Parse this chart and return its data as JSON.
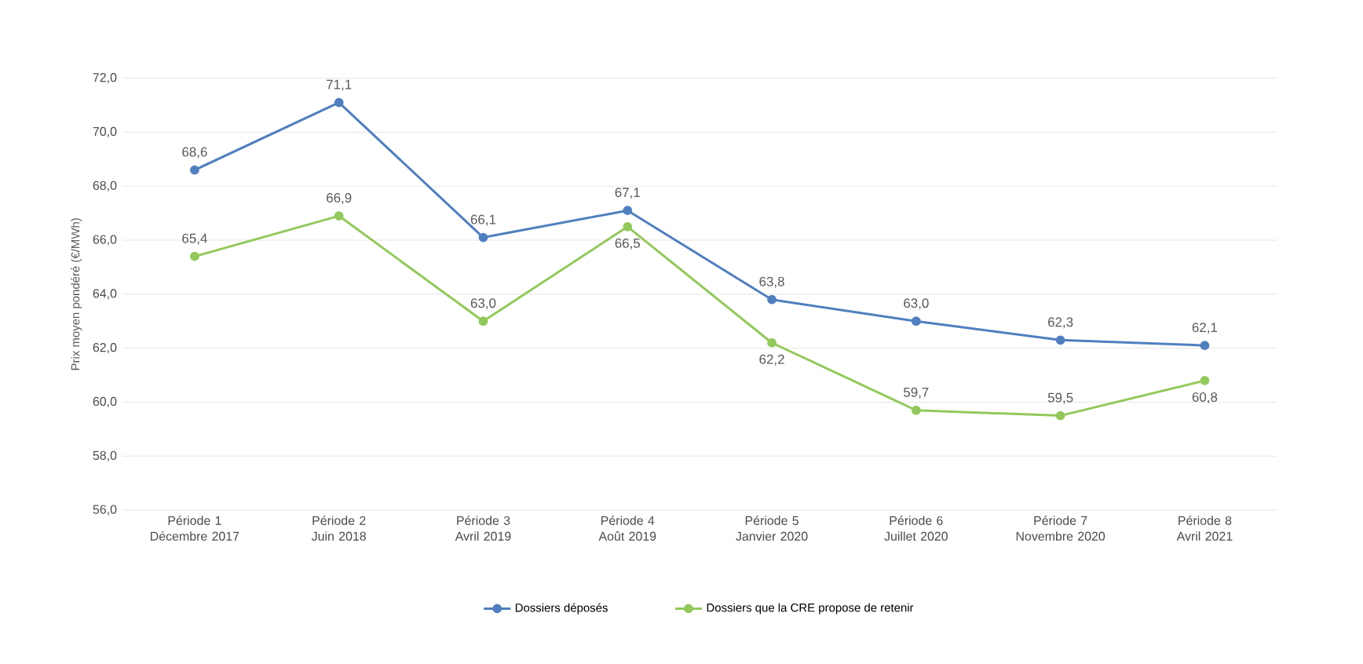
{
  "chart_data": {
    "type": "line",
    "ylabel": "Prix moyen pondéré (€/MWh)",
    "categories": [
      "Période 1 Décembre 2017",
      "Période 2 Juin 2018",
      "Période 3 Avril 2019",
      "Période 4 Août 2019",
      "Période 5 Janvier 2020",
      "Période 6 Juillet 2020",
      "Période 7 Novembre 2020",
      "Période 8 Avril 2021"
    ],
    "series": [
      {
        "name": "Dossiers déposés",
        "color": "#4f7fbf",
        "values": [
          68.6,
          71.1,
          66.1,
          67.1,
          63.8,
          63.0,
          62.3,
          62.1
        ],
        "value_labels": [
          "68,6",
          "71,1",
          "66,1",
          "67,1",
          "63,8",
          "63,0",
          "62,3",
          "62,1"
        ]
      },
      {
        "name": "Dossiers que la CRE propose de retenir",
        "color": "#92c95a",
        "values": [
          65.4,
          66.9,
          63.0,
          66.5,
          62.2,
          59.7,
          59.5,
          60.8
        ],
        "value_labels": [
          "65,4",
          "66,9",
          "63,0",
          "66,5",
          "62,2",
          "59,7",
          "59,5",
          "60,8"
        ]
      }
    ],
    "ylim": [
      56,
      72
    ],
    "yticks": [
      {
        "value": 56,
        "label": "56,0"
      },
      {
        "value": 58,
        "label": "58,0"
      },
      {
        "value": 60,
        "label": "60,0"
      },
      {
        "value": 62,
        "label": "62,0"
      },
      {
        "value": 64,
        "label": "64,0"
      },
      {
        "value": 66,
        "label": "66,0"
      },
      {
        "value": 68,
        "label": "68,0"
      },
      {
        "value": 70,
        "label": "70,0"
      },
      {
        "value": 72,
        "label": "72,0"
      }
    ],
    "grid": "y",
    "legend": "bottom",
    "marker": "circle",
    "line_style": "solid"
  }
}
